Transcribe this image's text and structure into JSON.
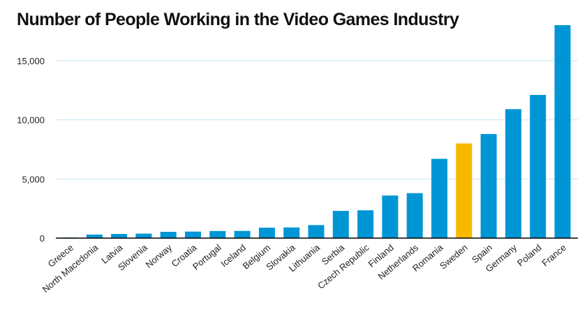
{
  "chart_data": {
    "type": "bar",
    "title": "Number of People Working in the Video Games Industry",
    "xlabel": "",
    "ylabel": "",
    "categories": [
      "Greece",
      "North Macedonia",
      "Latvia",
      "Slovenia",
      "Norway",
      "Croatia",
      "Portugal",
      "Iceland",
      "Belgium",
      "Slovakia",
      "Lithuania",
      "Serbia",
      "Czech Republic",
      "Finland",
      "Netherlands",
      "Romania",
      "Sweden",
      "Spain",
      "Germany",
      "Poland",
      "France"
    ],
    "values": [
      50,
      300,
      350,
      380,
      530,
      550,
      600,
      610,
      880,
      900,
      1100,
      2300,
      2350,
      3600,
      3800,
      6700,
      8000,
      8800,
      10900,
      12100,
      18000
    ],
    "y_ticks": [
      0,
      5000,
      10000,
      15000
    ],
    "y_tick_labels": [
      "0",
      "5,000",
      "10,000",
      "15,000"
    ],
    "ylim": [
      0,
      18000
    ],
    "grid": true,
    "colors": {
      "bar": "#0096d6",
      "highlight": "#f7b900",
      "grid": "#d6eef7",
      "baseline": "#000000"
    },
    "highlight_category": "Sweden"
  }
}
